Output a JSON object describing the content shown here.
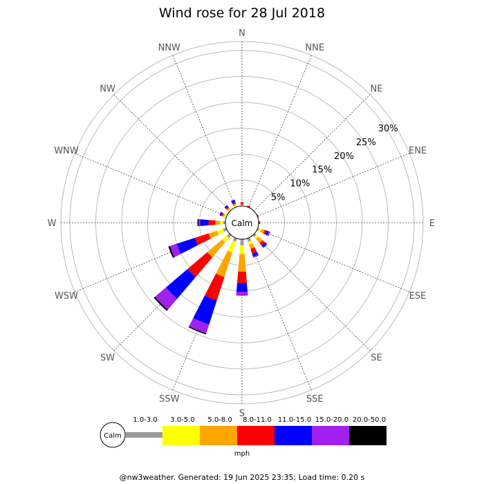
{
  "chart_data": {
    "type": "windrose",
    "title": "Wind rose for 28 Jul 2018",
    "directions": [
      "N",
      "NNE",
      "NE",
      "ENE",
      "E",
      "ESE",
      "SE",
      "SSE",
      "S",
      "SSW",
      "SW",
      "WSW",
      "W",
      "WNW",
      "NW",
      "NNW"
    ],
    "radial_ticks": [
      "5%",
      "10%",
      "15%",
      "20%",
      "25%",
      "30%"
    ],
    "radial_max_percent": 30,
    "calm_label": "Calm",
    "unit_label": "mph",
    "speed_bins": [
      {
        "label": "1.0-3.0",
        "color": "#999999"
      },
      {
        "label": "3.0-5.0",
        "color": "#ffff00"
      },
      {
        "label": "5.0-8.0",
        "color": "#ffa500"
      },
      {
        "label": "8.0-11.0",
        "color": "#ff0000"
      },
      {
        "label": "11.0-15.0",
        "color": "#0000ff"
      },
      {
        "label": "15.0-20.0",
        "color": "#a020f0"
      },
      {
        "label": "20.0-50.0",
        "color": "#000000"
      }
    ],
    "series_percent": {
      "N": [
        0,
        0,
        0.3,
        0.4,
        0,
        0,
        0
      ],
      "NNE": [
        0,
        0,
        0,
        0.3,
        0,
        0,
        0
      ],
      "NE": [
        0,
        0,
        0,
        0,
        0,
        0,
        0
      ],
      "ENE": [
        0,
        0,
        0,
        0.2,
        0,
        0,
        0
      ],
      "E": [
        0,
        0,
        0,
        0.3,
        0,
        0,
        0
      ],
      "ESE": [
        0.3,
        0.4,
        0.6,
        0.4,
        0.4,
        0.3,
        0
      ],
      "SE": [
        0.4,
        0.5,
        1.0,
        0.6,
        0.5,
        0,
        0
      ],
      "SSE": [
        0.6,
        0.6,
        0.8,
        0.9,
        0.6,
        0.2,
        0
      ],
      "S": [
        1.1,
        1.6,
        3.2,
        2.1,
        1.6,
        0.7,
        0
      ],
      "SSW": [
        0.6,
        2.1,
        4.7,
        4.5,
        4.6,
        1.7,
        0.2
      ],
      "SW": [
        0.6,
        1.1,
        3.6,
        4.7,
        5.2,
        2.6,
        0.3
      ],
      "WSW": [
        0.6,
        1.2,
        1.6,
        2.6,
        3.5,
        1.3,
        0.3
      ],
      "W": [
        0.4,
        0.6,
        0.8,
        1.3,
        1.5,
        0.3,
        0.2
      ],
      "WNW": [
        0,
        0.4,
        0.3,
        0.3,
        0.3,
        0,
        0
      ],
      "NW": [
        0,
        0.3,
        0.3,
        0.3,
        0.3,
        0,
        0
      ],
      "NNW": [
        0,
        0.3,
        0.3,
        0.3,
        0.5,
        0,
        0
      ]
    }
  },
  "footer": "@nw3weather. Generated: 19 Jun 2025 23:35; Load time: 0.20 s"
}
